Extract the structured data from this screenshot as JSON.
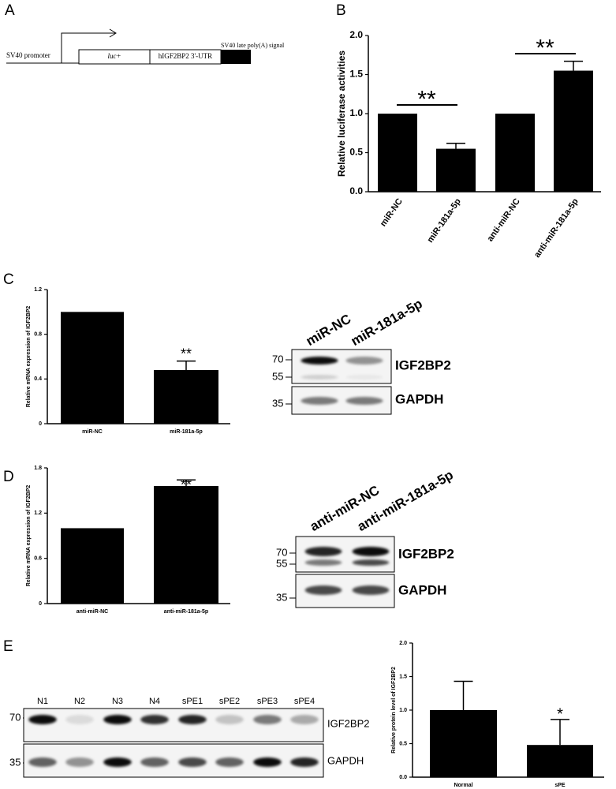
{
  "panels": [
    "A",
    "B",
    "C",
    "D",
    "E"
  ],
  "construct": {
    "promoter": "SV40 promoter",
    "gene": "luc+",
    "utr": "hIGF2BP2 3'-UTR",
    "signal": "SV40 late poly(A) signal"
  },
  "blots": [
    {
      "lanes": [
        "miR-NC",
        "miR-181a-5p"
      ],
      "markers": [
        "70",
        "55",
        "35"
      ],
      "proteins": [
        "IGF2BP2",
        "GAPDH"
      ]
    },
    {
      "lanes": [
        "anti-miR-NC",
        "anti-miR-181a-5p"
      ],
      "markers": [
        "70",
        "55",
        "35"
      ],
      "proteins": [
        "IGF2BP2",
        "GAPDH"
      ]
    },
    {
      "lanes": [
        "N1",
        "N2",
        "N3",
        "N4",
        "sPE1",
        "sPE2",
        "sPE3",
        "sPE4"
      ],
      "markers": [
        "70",
        "35"
      ],
      "proteins": [
        "IGF2BP2",
        "GAPDH"
      ]
    }
  ],
  "chart_data": [
    {
      "type": "bar",
      "y_label": "Relative luciferase activities",
      "categories": [
        "miR-NC",
        "miR-181a-5p",
        "anti-miR-NC",
        "anti-miR-181a-5p"
      ],
      "values": [
        1.0,
        0.55,
        1.0,
        1.55
      ],
      "errors": [
        0,
        0.07,
        0,
        0.12
      ],
      "color": "#000000",
      "ylim": [
        0,
        2.0
      ],
      "yticks": [
        {
          "value": 0,
          "label": "0.0"
        },
        {
          "value": 0.5,
          "label": "0.5"
        },
        {
          "value": 1,
          "label": "1.0"
        },
        {
          "value": 1.5,
          "label": "1.5"
        },
        {
          "value": 2,
          "label": "2.0"
        }
      ],
      "annotations": [
        "**",
        "**"
      ]
    },
    {
      "type": "bar",
      "y_label": "Relative mRNA expression of IGF2BP2",
      "categories": [
        "miR-NC",
        "miR-181a-5p"
      ],
      "values": [
        1.0,
        0.48
      ],
      "errors": [
        0,
        0.08
      ],
      "color": "#000000",
      "ylim": [
        0,
        1.2
      ],
      "yticks": [
        0,
        0.4,
        0.8,
        1.2
      ],
      "annotations": [
        "**"
      ]
    },
    {
      "type": "bar",
      "y_label": "Relative mRNA expression of IGF2BP2",
      "categories": [
        "anti-miR-NC",
        "anti-miR-181a-5p"
      ],
      "values": [
        1.0,
        1.56
      ],
      "errors": [
        0,
        0.08
      ],
      "color": "#000000",
      "ylim": [
        0,
        1.8
      ],
      "yticks": [
        0,
        0.6,
        1.2,
        1.8
      ],
      "annotations": [
        "**"
      ]
    },
    {
      "type": "bar",
      "y_label": "Relative protein level of IGF2BP2",
      "categories": [
        "Normal",
        "sPE"
      ],
      "values": [
        1.0,
        0.48
      ],
      "errors": [
        0.43,
        0.38
      ],
      "color": "#000000",
      "ylim": [
        0,
        2.0
      ],
      "yticks": [
        {
          "value": 0,
          "label": "0.0"
        },
        {
          "value": 0.5,
          "label": "0.5"
        },
        {
          "value": 1,
          "label": "1.0"
        },
        {
          "value": 1.5,
          "label": "1.5"
        },
        {
          "value": 2,
          "label": "2.0"
        }
      ],
      "annotations": [
        "*"
      ]
    }
  ]
}
